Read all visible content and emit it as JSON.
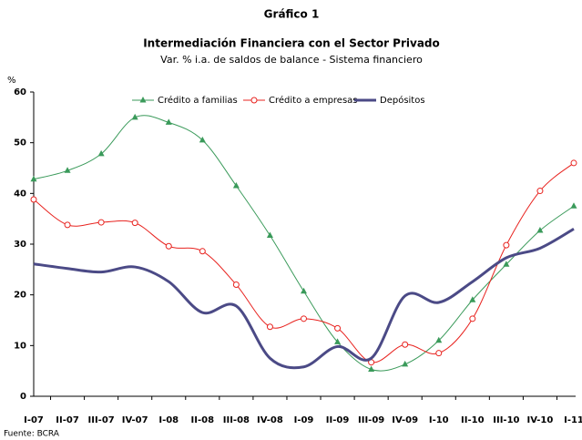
{
  "chart_data": {
    "type": "line",
    "title": "Gráfico 1",
    "subtitle": "Intermediación Financiera con el Sector Privado",
    "description": "Var. % i.a. de saldos de balance - Sistema financiero",
    "y_label": "%",
    "source": "Fuente: BCRA",
    "categories": [
      "I-07",
      "II-07",
      "III-07",
      "IV-07",
      "I-08",
      "II-08",
      "III-08",
      "IV-08",
      "I-09",
      "II-09",
      "III-09",
      "IV-09",
      "I-10",
      "II-10",
      "III-10",
      "IV-10",
      "I-11"
    ],
    "series": [
      {
        "name": "Crédito a familias",
        "color": "#3a9a5a",
        "marker": "triangle",
        "values": [
          42.8,
          44.5,
          47.8,
          55,
          54,
          50.5,
          41.5,
          31.7,
          20.7,
          10.7,
          5.3,
          6.3,
          11,
          19,
          26,
          32.7,
          37.5
        ]
      },
      {
        "name": "Crédito a empresas",
        "color": "#e8231f",
        "marker": "circle",
        "values": [
          38.8,
          33.8,
          34.3,
          34.2,
          29.6,
          28.6,
          22,
          13.7,
          15.3,
          13.4,
          6.7,
          10.2,
          8.5,
          15.3,
          29.8,
          40.5,
          46
        ]
      },
      {
        "name": "Depósitos",
        "color": "#4b4a86",
        "marker": "none",
        "values": [
          26.1,
          25.2,
          24.5,
          25.5,
          22.6,
          16.5,
          17.8,
          7.5,
          5.8,
          9.8,
          7.5,
          19.8,
          18.5,
          22.6,
          27.3,
          29.2,
          33
        ]
      }
    ],
    "ylim": [
      0,
      60
    ],
    "yticks": [
      0,
      10,
      20,
      30,
      40,
      50,
      60
    ],
    "grid": false,
    "legend": "top"
  }
}
